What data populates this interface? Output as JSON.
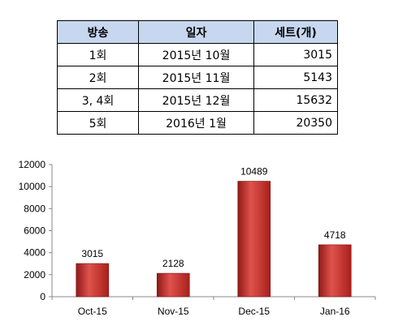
{
  "table": {
    "headers": [
      "방송",
      "일자",
      "세트(개)"
    ],
    "rows": [
      [
        "1회",
        "2015년 10월",
        "3015"
      ],
      [
        "2회",
        "2015년 11월",
        "5143"
      ],
      [
        "3, 4회",
        "2015년 12월",
        "15632"
      ],
      [
        "5회",
        "2016년 1월",
        "20350"
      ]
    ]
  },
  "chart_data": {
    "type": "bar",
    "categories": [
      "Oct-15",
      "Nov-15",
      "Dec-15",
      "Jan-16"
    ],
    "values": [
      3015,
      2128,
      10489,
      4718
    ],
    "data_labels": [
      "3015",
      "2128",
      "10489",
      "4718"
    ],
    "y_ticks": [
      "0",
      "2000",
      "4000",
      "6000",
      "8000",
      "10000",
      "12000"
    ],
    "ylim": [
      0,
      12000
    ],
    "grid": false,
    "legend": "none",
    "bar_color": "#d13a35",
    "title": "",
    "xlabel": "",
    "ylabel": ""
  }
}
